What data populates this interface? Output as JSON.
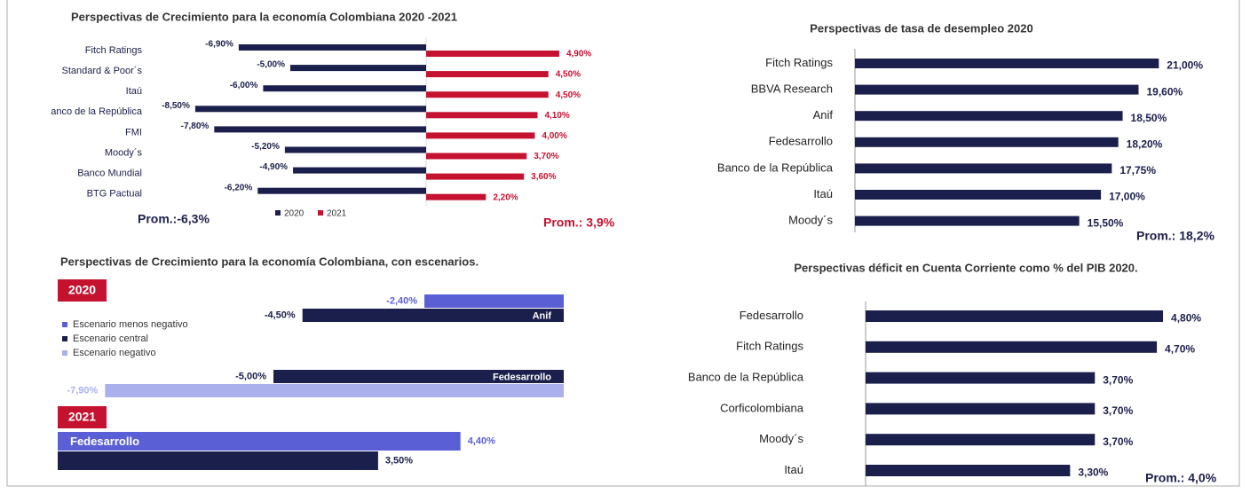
{
  "chart_data": [
    {
      "type": "bar",
      "orientation": "horizontal",
      "title": "Perspectivas de Crecimiento para la economía Colombiana 2020 -2021",
      "categories": [
        "Fitch Ratings",
        "Standard & Poor´s",
        "Itaú",
        "anco de la República",
        "FMI",
        "Moody´s",
        "Banco Mundial",
        "BTG Pactual"
      ],
      "series": [
        {
          "name": "2020",
          "color": "#1b1f4b",
          "values": [
            -6.9,
            -5.0,
            -6.0,
            -8.5,
            -7.8,
            -5.2,
            -4.9,
            -6.2
          ],
          "value_labels": [
            "-6,90%",
            "-5,00%",
            "-6,00%",
            "-8,50%",
            "-7,80%",
            "-5,20%",
            "-4,90%",
            "-6,20%"
          ]
        },
        {
          "name": "2021",
          "color": "#c51230",
          "values": [
            4.9,
            4.5,
            4.5,
            4.1,
            4.0,
            3.7,
            3.6,
            2.2
          ],
          "value_labels": [
            "4,90%",
            "4,50%",
            "4,50%",
            "4,10%",
            "4,00%",
            "3,70%",
            "3,60%",
            "2,20%"
          ]
        }
      ],
      "xlim": [
        -9,
        5
      ],
      "legend": "bottom",
      "annotations": [
        "Prom.:-6,3%",
        "Prom.: 3,9%"
      ]
    },
    {
      "type": "bar",
      "orientation": "horizontal",
      "title": "Perspectivas de tasa de desempleo 2020",
      "categories": [
        "Fitch Ratings",
        "BBVA Research",
        "Anif",
        "Fedesarrollo",
        "Banco de la República",
        "Itaú",
        "Moody´s"
      ],
      "values": [
        21.0,
        19.6,
        18.5,
        18.2,
        17.75,
        17.0,
        15.5
      ],
      "value_labels": [
        "21,00%",
        "19,60%",
        "18,50%",
        "18,20%",
        "17,75%",
        "17,00%",
        "15,50%"
      ],
      "color": "#1b1f4b",
      "xlim": [
        0,
        22
      ],
      "annotations": [
        "Prom.: 18,2%"
      ]
    },
    {
      "type": "bar",
      "orientation": "horizontal",
      "title": "Perspectivas de Crecimiento para la economía Colombiana, con escenarios.",
      "series": [
        {
          "name": "Escenario menos negativo",
          "color": "#5a5fd6"
        },
        {
          "name": "Escenario central",
          "color": "#1b1f4b"
        },
        {
          "name": "Escenario negativo",
          "color": "#aab0ec"
        }
      ],
      "legend": "left",
      "panels": [
        {
          "label": "2020",
          "categories": [
            "Anif",
            "Fedesarrollo"
          ],
          "xlim": [
            -8,
            0
          ],
          "values": [
            [
              -2.4,
              null
            ],
            [
              -4.5,
              -5.0
            ],
            [
              null,
              -7.9
            ]
          ],
          "value_labels": [
            [
              "-2,40%",
              null
            ],
            [
              "-4,50%",
              "-5,00%"
            ],
            [
              null,
              "-7,90%"
            ]
          ]
        },
        {
          "label": "2021",
          "categories": [
            "Fedesarrollo"
          ],
          "xlim": [
            0,
            4.5
          ],
          "values": [
            [
              4.4
            ],
            [
              3.5
            ],
            [
              null
            ]
          ],
          "value_labels": [
            [
              "4,40%"
            ],
            [
              "3,50%"
            ],
            [
              null
            ]
          ]
        }
      ]
    },
    {
      "type": "bar",
      "orientation": "horizontal",
      "title": "Perspectivas déficit en Cuenta Corriente como % del PIB 2020.",
      "categories": [
        "Fedesarrollo",
        "Fitch Ratings",
        "Banco de la República",
        "Corficolombiana",
        "Moody´s",
        "Itaú"
      ],
      "values": [
        4.8,
        4.7,
        3.7,
        3.7,
        3.7,
        3.3
      ],
      "value_labels": [
        "4,80%",
        "4,70%",
        "3,70%",
        "3,70%",
        "3,70%",
        "3,30%"
      ],
      "color": "#1b1f4b",
      "xlim": [
        0,
        5
      ],
      "annotations": [
        "Prom.: 4,0%"
      ]
    }
  ]
}
